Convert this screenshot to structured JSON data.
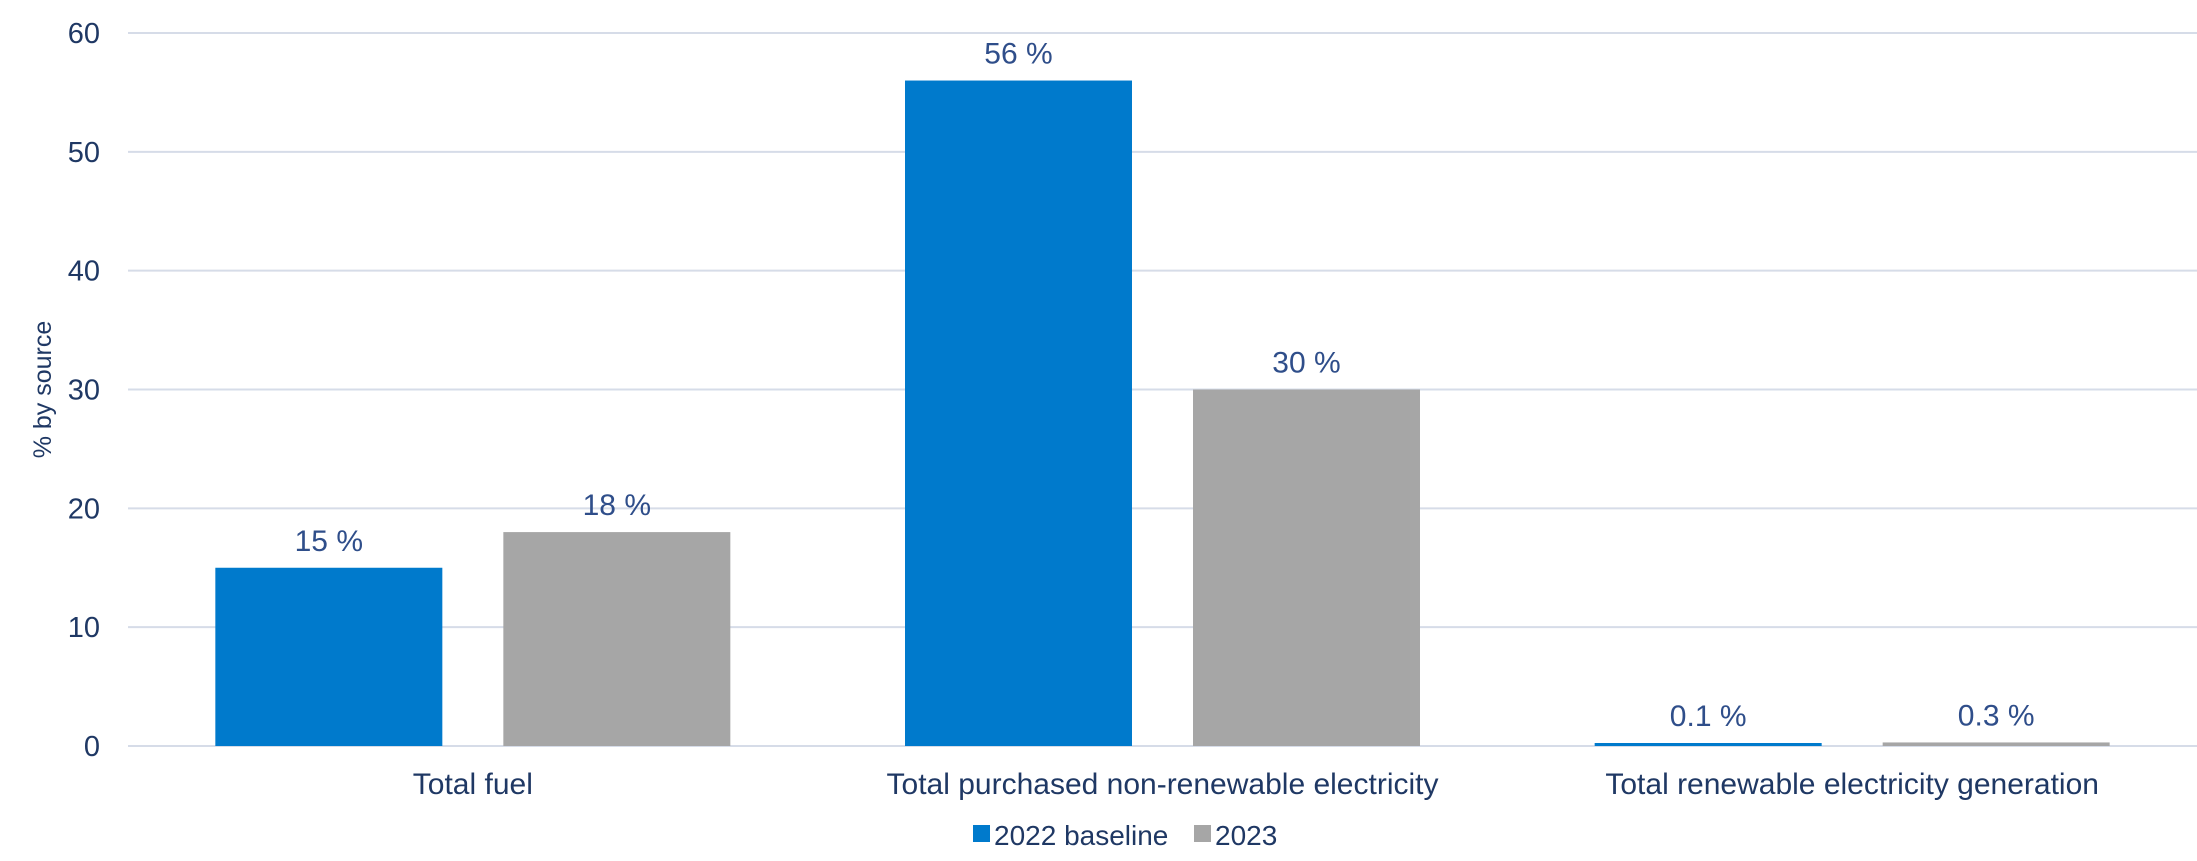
{
  "chart_data": {
    "type": "bar",
    "ylabel": "% by source",
    "xlabel": "",
    "ylim": [
      0,
      60
    ],
    "yticks": [
      "0",
      "10",
      "20",
      "30",
      "40",
      "50",
      "60"
    ],
    "categories": [
      "Total fuel",
      "Total purchased non-renewable electricity",
      "Total renewable electricity generation"
    ],
    "series": [
      {
        "name": "2022 baseline",
        "color": "#007ACC",
        "values": [
          15,
          56,
          0.1
        ],
        "labels": [
          "15 %",
          "56 %",
          "0.1 %"
        ]
      },
      {
        "name": "2023",
        "color": "#A6A6A6",
        "values": [
          18,
          30,
          0.3
        ],
        "labels": [
          "18 %",
          "30 %",
          "0.3 %"
        ]
      }
    ],
    "grid": true,
    "legend_position": "bottom-center"
  }
}
